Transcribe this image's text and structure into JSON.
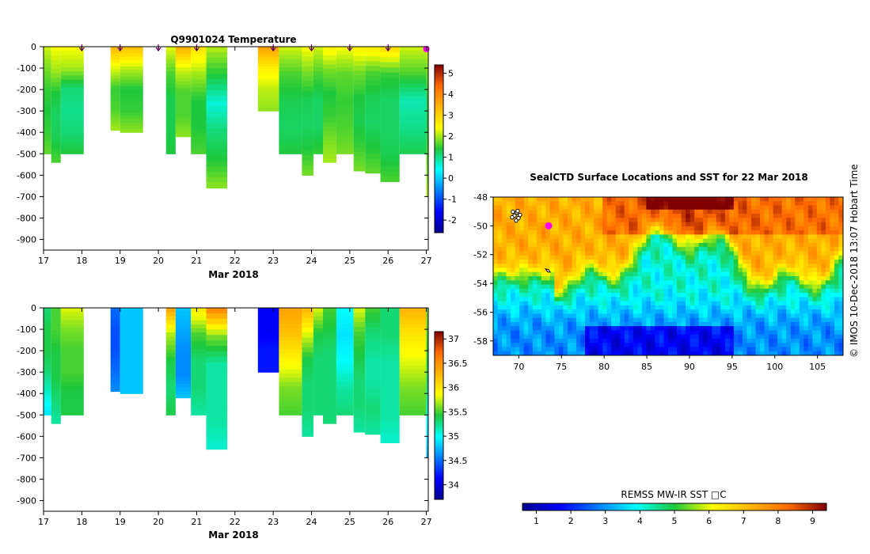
{
  "chart_data": [
    {
      "id": "temperature",
      "type": "heatmap",
      "title": "Q9901024  Temperature",
      "xlabel": "Mar 2018",
      "ylabel": "",
      "xlim": [
        17,
        27.05
      ],
      "ylim": [
        -950,
        0
      ],
      "xticks": [
        17,
        18,
        19,
        20,
        21,
        22,
        23,
        24,
        25,
        26,
        27
      ],
      "yticks": [
        0,
        -100,
        -200,
        -300,
        -400,
        -500,
        -600,
        -700,
        -800,
        -900
      ],
      "colorbar": {
        "min": -2.6,
        "max": 5.4,
        "ticks": [
          5,
          4,
          3,
          2,
          1,
          0,
          -1,
          -2
        ]
      },
      "profile_markers": [
        18,
        19,
        20,
        21,
        23,
        24,
        25,
        26,
        27
      ],
      "profiles": [
        {
          "x0": 17.0,
          "x1": 17.2,
          "depth": 500,
          "t": [
            2.2,
            1.8,
            1.5,
            1.4,
            1.5,
            1.7
          ]
        },
        {
          "x0": 17.2,
          "x1": 17.45,
          "depth": 540,
          "t": [
            2.4,
            2.0,
            1.4,
            1.2,
            1.3,
            1.6
          ]
        },
        {
          "x0": 17.45,
          "x1": 18.05,
          "depth": 500,
          "t": [
            2.4,
            2.0,
            1.1,
            1.0,
            1.1,
            1.4
          ]
        },
        {
          "x0": 18.75,
          "x1": 19.0,
          "depth": 390,
          "t": [
            3.4,
            2.3,
            1.5,
            1.6,
            2.0
          ]
        },
        {
          "x0": 19.0,
          "x1": 19.6,
          "depth": 400,
          "t": [
            3.3,
            2.1,
            1.4,
            1.5,
            1.9
          ]
        },
        {
          "x0": 20.2,
          "x1": 20.45,
          "depth": 500,
          "t": [
            2.3,
            1.6,
            1.3,
            1.3,
            1.4
          ]
        },
        {
          "x0": 20.45,
          "x1": 20.85,
          "depth": 420,
          "t": [
            3.5,
            2.2,
            1.6,
            1.6,
            1.9
          ]
        },
        {
          "x0": 20.85,
          "x1": 21.25,
          "depth": 500,
          "t": [
            2.8,
            2.0,
            1.4,
            1.4,
            1.6
          ]
        },
        {
          "x0": 21.25,
          "x1": 21.8,
          "depth": 660,
          "t": [
            2.1,
            1.4,
            0.6,
            1.1,
            1.4,
            1.9
          ]
        },
        {
          "x0": 22.6,
          "x1": 23.15,
          "depth": 300,
          "t": [
            3.7,
            2.6,
            2.1,
            1.9
          ]
        },
        {
          "x0": 23.15,
          "x1": 23.75,
          "depth": 500,
          "t": [
            2.2,
            1.6,
            1.3,
            1.2,
            1.4
          ]
        },
        {
          "x0": 23.75,
          "x1": 24.05,
          "depth": 600,
          "t": [
            2.4,
            1.8,
            1.3,
            1.2,
            1.4,
            1.8
          ]
        },
        {
          "x0": 24.05,
          "x1": 24.3,
          "depth": 500,
          "t": [
            2.2,
            1.6,
            1.2,
            1.2,
            1.5
          ]
        },
        {
          "x0": 24.3,
          "x1": 24.65,
          "depth": 540,
          "t": [
            2.6,
            1.8,
            1.4,
            1.5,
            1.8,
            2.0
          ]
        },
        {
          "x0": 24.65,
          "x1": 25.1,
          "depth": 500,
          "t": [
            2.4,
            1.7,
            1.5,
            1.6,
            1.8
          ]
        },
        {
          "x0": 25.1,
          "x1": 25.4,
          "depth": 580,
          "t": [
            2.6,
            1.8,
            1.4,
            1.3,
            1.5,
            1.8
          ]
        },
        {
          "x0": 25.4,
          "x1": 25.8,
          "depth": 590,
          "t": [
            2.7,
            1.6,
            1.3,
            1.2,
            1.4,
            1.7
          ]
        },
        {
          "x0": 25.8,
          "x1": 26.3,
          "depth": 630,
          "t": [
            2.9,
            1.5,
            1.2,
            1.2,
            1.3,
            1.6
          ]
        },
        {
          "x0": 26.3,
          "x1": 27.0,
          "depth": 500,
          "t": [
            2.2,
            1.6,
            0.8,
            1.0,
            1.3
          ]
        },
        {
          "x0": 27.0,
          "x1": 27.05,
          "depth": 700,
          "t": [
            2.3,
            1.8,
            1.5,
            1.4,
            1.6,
            1.8,
            2.1
          ]
        }
      ]
    },
    {
      "id": "salinity",
      "type": "heatmap",
      "title": "",
      "xlabel": "Mar 2018",
      "ylabel": "",
      "xlim": [
        17,
        27.05
      ],
      "ylim": [
        -950,
        0
      ],
      "xticks": [
        17,
        18,
        19,
        20,
        21,
        22,
        23,
        24,
        25,
        26,
        27
      ],
      "yticks": [
        0,
        -100,
        -200,
        -300,
        -400,
        -500,
        -600,
        -700,
        -800,
        -900
      ],
      "colorbar": {
        "min": 33.7,
        "max": 37.15,
        "ticks": [
          37,
          36.5,
          36,
          35.5,
          35,
          34.5,
          34
        ]
      },
      "profiles": [
        {
          "x0": 17.0,
          "x1": 17.2,
          "depth": 500,
          "s": [
            35.3,
            35.4,
            35.4,
            35.3,
            35.1,
            34.9
          ]
        },
        {
          "x0": 17.2,
          "x1": 17.45,
          "depth": 540,
          "s": [
            35.5,
            35.5,
            35.4,
            35.4,
            35.3,
            35.2
          ]
        },
        {
          "x0": 17.45,
          "x1": 18.05,
          "depth": 500,
          "s": [
            35.8,
            35.6,
            35.5,
            35.5,
            35.4,
            35.4
          ]
        },
        {
          "x0": 18.75,
          "x1": 19.0,
          "depth": 390,
          "s": [
            34.5,
            34.4,
            34.4,
            34.5,
            34.6
          ]
        },
        {
          "x0": 19.0,
          "x1": 19.6,
          "depth": 400,
          "s": [
            34.8,
            34.8,
            34.8,
            34.8,
            34.8
          ]
        },
        {
          "x0": 20.2,
          "x1": 20.45,
          "depth": 500,
          "s": [
            36.4,
            35.7,
            35.4,
            35.3,
            35.4
          ]
        },
        {
          "x0": 20.45,
          "x1": 20.85,
          "depth": 420,
          "s": [
            34.8,
            34.7,
            34.6,
            34.6,
            34.8
          ]
        },
        {
          "x0": 20.85,
          "x1": 21.25,
          "depth": 500,
          "s": [
            36.0,
            35.5,
            35.3,
            35.3,
            35.2
          ]
        },
        {
          "x0": 21.25,
          "x1": 21.8,
          "depth": 660,
          "s": [
            36.6,
            35.6,
            35.2,
            35.2,
            35.2,
            35.1
          ]
        },
        {
          "x0": 22.6,
          "x1": 23.15,
          "depth": 300,
          "s": [
            34.1,
            34.1,
            34.2,
            34.2
          ]
        },
        {
          "x0": 23.15,
          "x1": 23.75,
          "depth": 500,
          "s": [
            36.4,
            36.2,
            35.9,
            35.6,
            35.5
          ]
        },
        {
          "x0": 23.75,
          "x1": 24.05,
          "depth": 600,
          "s": [
            36.3,
            35.8,
            35.4,
            35.3,
            35.3,
            35.2
          ]
        },
        {
          "x0": 24.05,
          "x1": 24.3,
          "depth": 500,
          "s": [
            35.8,
            35.4,
            35.3,
            35.3,
            35.3
          ]
        },
        {
          "x0": 24.3,
          "x1": 24.65,
          "depth": 540,
          "s": [
            35.5,
            35.4,
            35.3,
            35.3,
            35.3,
            35.3
          ]
        },
        {
          "x0": 24.65,
          "x1": 25.1,
          "depth": 500,
          "s": [
            35.0,
            34.9,
            35.0,
            35.2,
            35.3
          ]
        },
        {
          "x0": 25.1,
          "x1": 25.4,
          "depth": 580,
          "s": [
            35.8,
            35.5,
            35.4,
            35.3,
            35.3,
            35.2
          ]
        },
        {
          "x0": 25.4,
          "x1": 25.8,
          "depth": 590,
          "s": [
            35.5,
            35.3,
            35.2,
            35.2,
            35.3,
            35.2
          ]
        },
        {
          "x0": 25.8,
          "x1": 26.3,
          "depth": 630,
          "s": [
            35.3,
            35.3,
            35.2,
            35.2,
            35.2,
            35.1
          ]
        },
        {
          "x0": 26.3,
          "x1": 27.0,
          "depth": 500,
          "s": [
            36.3,
            36.0,
            35.8,
            35.6,
            35.5
          ]
        },
        {
          "x0": 27.0,
          "x1": 27.05,
          "depth": 700,
          "s": [
            35.6,
            35.5,
            35.4,
            35.3,
            35.1,
            34.9,
            34.7
          ]
        }
      ]
    },
    {
      "id": "sst-map",
      "type": "heatmap",
      "title": "SealCTD Surface Locations and SST for 22 Mar 2018",
      "xlabel": "",
      "ylabel": "",
      "xlim": [
        67,
        108
      ],
      "ylim": [
        -59,
        -48
      ],
      "xticks": [
        70,
        75,
        80,
        85,
        90,
        95,
        100,
        105
      ],
      "yticks": [
        -48,
        -50,
        -52,
        -54,
        -56,
        -58
      ],
      "colorbar": {
        "label": "REMSS MW-IR SST □C",
        "min": 0.6,
        "max": 9.4,
        "ticks": [
          1,
          2,
          3,
          4,
          5,
          6,
          7,
          8,
          9
        ]
      },
      "current_location": {
        "lon": 73.5,
        "lat": -50.0
      },
      "track_cluster": {
        "lon": 69.5,
        "lat": -49.3
      },
      "island": {
        "lon": 73.4,
        "lat": -53.1
      }
    }
  ],
  "stamp": "©  IMOS 10-Dec-2018 13:07 Hobart Time"
}
